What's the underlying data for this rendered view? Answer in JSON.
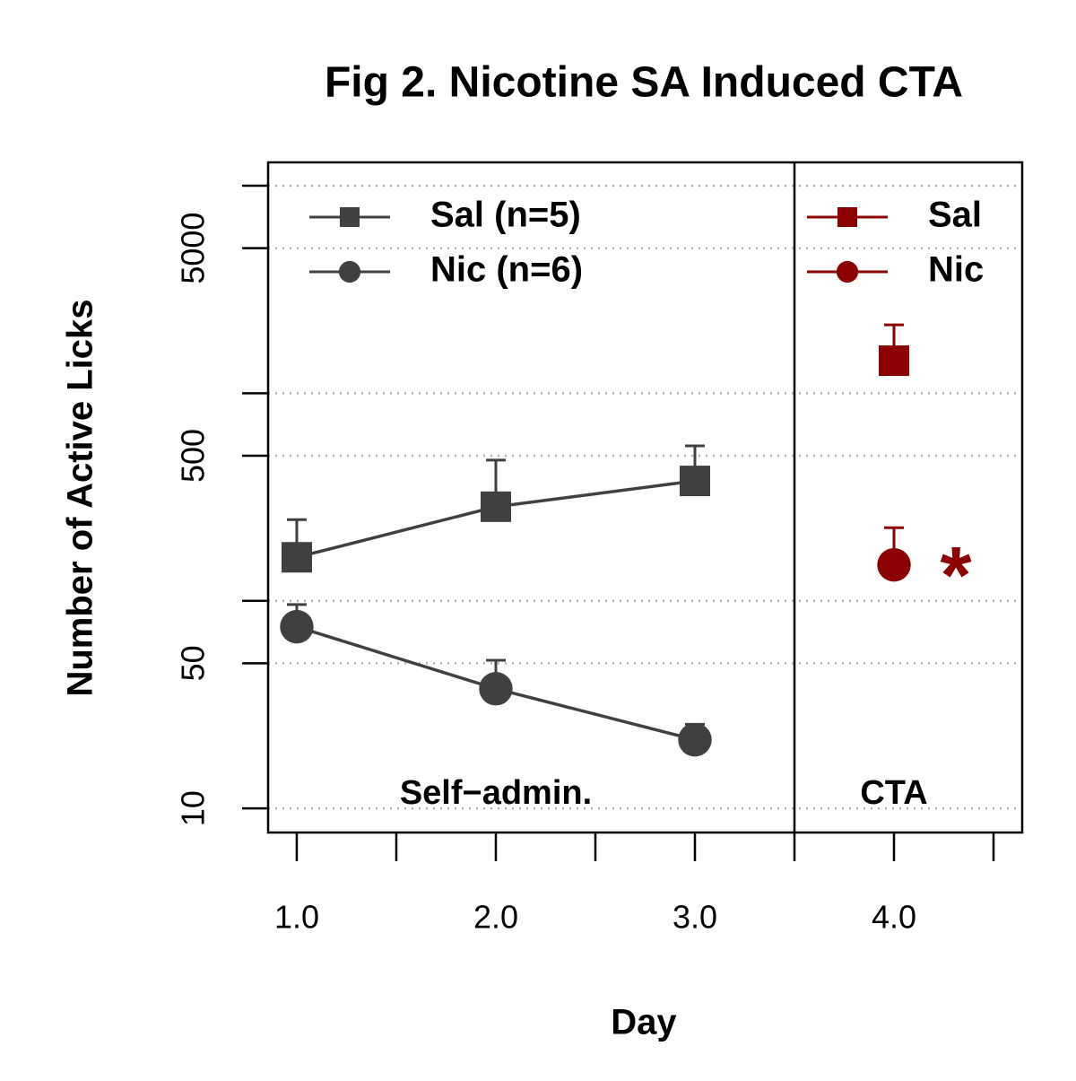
{
  "chart_data": {
    "type": "line",
    "title": "Fig 2. Nicotine SA Induced CTA",
    "x_label": "Day",
    "y_label": "Number of Active Licks",
    "ylog": true,
    "grid": true,
    "xlim": [
      0.856,
      4.644
    ],
    "ylim": [
      7.65,
      12950
    ],
    "xticks": [
      {
        "value": 1,
        "label": "1.0"
      },
      {
        "value": 2,
        "label": "2.0"
      },
      {
        "value": 3,
        "label": "3.0"
      },
      {
        "value": 4,
        "label": "4.0"
      }
    ],
    "xminor_ticks": [
      1.5,
      2.5,
      3.5,
      4.5
    ],
    "yticks": [
      10,
      50,
      500,
      5000
    ],
    "yminor_ticks": [
      100,
      1000,
      10000
    ],
    "divider": 3.5,
    "annotations": [
      "Self−admin.",
      "CTA",
      "*"
    ],
    "series": [
      {
        "name": "Sal (n=5)",
        "color": "#404040",
        "marker": "square",
        "legend": "topleft",
        "x": [
          1,
          2,
          3
        ],
        "values": [
          162,
          284,
          378
        ],
        "errors": [
          84,
          192,
          180
        ]
      },
      {
        "name": "Nic (n=6)",
        "color": "#404040",
        "marker": "circle",
        "legend": "topleft",
        "x": [
          1,
          2,
          3
        ],
        "values": [
          75,
          37.7,
          21.4
        ],
        "errors": [
          21,
          14,
          4
        ]
      },
      {
        "name": "Sal",
        "color": "#8b0000",
        "marker": "square",
        "legend": "topright",
        "x": [
          4
        ],
        "values": [
          1435
        ],
        "errors": [
          700
        ]
      },
      {
        "name": "Nic",
        "color": "#8b0000",
        "marker": "circle",
        "legend": "topright",
        "x": [
          4
        ],
        "values": [
          149
        ],
        "errors": [
          76
        ]
      }
    ]
  }
}
